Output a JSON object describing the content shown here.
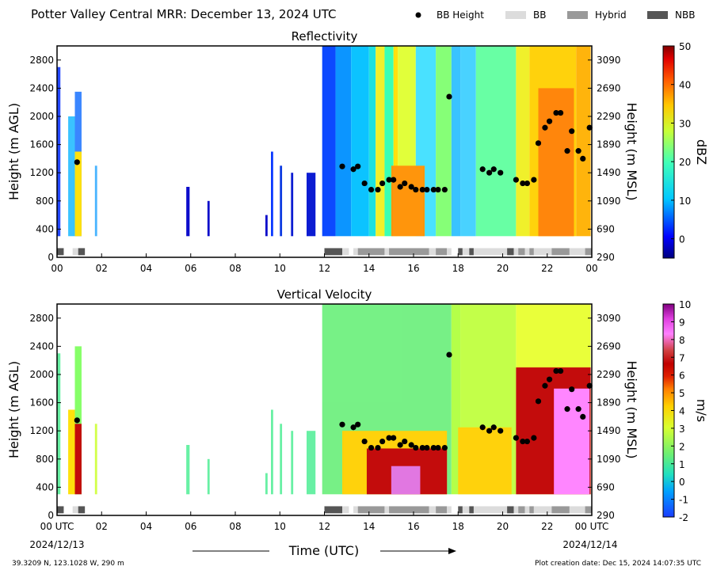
{
  "header": {
    "title": "Potter Valley Central MRR:  December 13, 2024 UTC"
  },
  "legend": [
    {
      "label": "BB Height",
      "kind": "dot",
      "color": "#000000"
    },
    {
      "label": "BB",
      "kind": "swatch",
      "color": "#dcdcdc"
    },
    {
      "label": "Hybrid",
      "kind": "swatch",
      "color": "#999999"
    },
    {
      "label": "NBB",
      "kind": "swatch",
      "color": "#555555"
    }
  ],
  "footer": {
    "location": "39.3209 N, 123.1028 W, 290 m",
    "created": "Plot creation date: Dec 15, 2024 14:07:35 UTC",
    "time_label": "Time (UTC)",
    "start_date": "2024/12/13",
    "end_date": "2024/12/14"
  },
  "chart_data": [
    {
      "type": "heatmap",
      "title": "Reflectivity",
      "ylabel": "Height (m AGL)",
      "ylabel_right": "Height (m MSL)",
      "ylim": [
        0,
        3000
      ],
      "yticks": [
        0,
        400,
        800,
        1200,
        1600,
        2000,
        2400,
        2800
      ],
      "yticks_right": [
        290,
        690,
        1090,
        1490,
        1890,
        2290,
        2690,
        3090
      ],
      "xlim": [
        0,
        24
      ],
      "xticks": [
        "00",
        "02",
        "04",
        "06",
        "08",
        "10",
        "12",
        "14",
        "16",
        "18",
        "20",
        "22",
        "00"
      ],
      "colorbar": {
        "label": "dBZ",
        "min": -5,
        "max": 50,
        "ticks": [
          0,
          10,
          20,
          30,
          40,
          50
        ]
      },
      "bb_height_points": [
        [
          0.9,
          1350
        ],
        [
          12.8,
          1290
        ],
        [
          13.3,
          1250
        ],
        [
          13.5,
          1290
        ],
        [
          13.8,
          1050
        ],
        [
          14.1,
          960
        ],
        [
          14.4,
          960
        ],
        [
          14.6,
          1050
        ],
        [
          14.9,
          1100
        ],
        [
          15.1,
          1100
        ],
        [
          15.4,
          1000
        ],
        [
          15.6,
          1050
        ],
        [
          15.9,
          1000
        ],
        [
          16.1,
          960
        ],
        [
          16.4,
          960
        ],
        [
          16.6,
          960
        ],
        [
          16.9,
          960
        ],
        [
          17.1,
          960
        ],
        [
          17.4,
          960
        ],
        [
          17.6,
          2280
        ],
        [
          19.1,
          1250
        ],
        [
          19.4,
          1200
        ],
        [
          19.6,
          1250
        ],
        [
          19.9,
          1200
        ],
        [
          20.6,
          1100
        ],
        [
          20.9,
          1050
        ],
        [
          21.1,
          1050
        ],
        [
          21.4,
          1100
        ],
        [
          21.6,
          1620
        ],
        [
          21.9,
          1840
        ],
        [
          22.1,
          1930
        ],
        [
          22.4,
          2050
        ],
        [
          22.6,
          2050
        ],
        [
          22.9,
          1510
        ],
        [
          23.1,
          1790
        ],
        [
          23.4,
          1510
        ],
        [
          23.6,
          1400
        ],
        [
          23.9,
          1840
        ]
      ],
      "classification": [
        {
          "start": 0.0,
          "end": 0.3,
          "class": "NBB"
        },
        {
          "start": 0.7,
          "end": 0.95,
          "class": "BB"
        },
        {
          "start": 0.95,
          "end": 1.25,
          "class": "NBB"
        },
        {
          "start": 12.0,
          "end": 12.8,
          "class": "NBB"
        },
        {
          "start": 12.8,
          "end": 13.1,
          "class": "BB"
        },
        {
          "start": 13.3,
          "end": 13.5,
          "class": "BB"
        },
        {
          "start": 13.5,
          "end": 14.7,
          "class": "Hybrid"
        },
        {
          "start": 14.7,
          "end": 14.9,
          "class": "BB"
        },
        {
          "start": 14.9,
          "end": 16.7,
          "class": "Hybrid"
        },
        {
          "start": 16.7,
          "end": 17.0,
          "class": "BB"
        },
        {
          "start": 17.0,
          "end": 17.5,
          "class": "Hybrid"
        },
        {
          "start": 17.5,
          "end": 17.7,
          "class": "BB"
        },
        {
          "start": 18.0,
          "end": 18.2,
          "class": "NBB"
        },
        {
          "start": 18.2,
          "end": 18.5,
          "class": "BB"
        },
        {
          "start": 18.5,
          "end": 18.7,
          "class": "NBB"
        },
        {
          "start": 18.7,
          "end": 20.2,
          "class": "BB"
        },
        {
          "start": 20.2,
          "end": 20.5,
          "class": "NBB"
        },
        {
          "start": 20.5,
          "end": 20.7,
          "class": "BB"
        },
        {
          "start": 20.7,
          "end": 21.0,
          "class": "Hybrid"
        },
        {
          "start": 21.0,
          "end": 21.2,
          "class": "BB"
        },
        {
          "start": 21.2,
          "end": 21.4,
          "class": "Hybrid"
        },
        {
          "start": 21.4,
          "end": 22.2,
          "class": "BB"
        },
        {
          "start": 22.2,
          "end": 23.0,
          "class": "Hybrid"
        },
        {
          "start": 23.0,
          "end": 23.7,
          "class": "BB"
        },
        {
          "start": 23.7,
          "end": 24.0,
          "class": "Hybrid"
        }
      ]
    },
    {
      "type": "heatmap",
      "title": "Vertical Velocity",
      "ylabel": "Height (m AGL)",
      "ylabel_right": "Height (m MSL)",
      "ylim": [
        0,
        3000
      ],
      "yticks": [
        0,
        400,
        800,
        1200,
        1600,
        2000,
        2400,
        2800
      ],
      "yticks_right": [
        290,
        690,
        1090,
        1490,
        1890,
        2290,
        2690,
        3090
      ],
      "xlim": [
        0,
        24
      ],
      "xticks": [
        "00 UTC",
        "02",
        "04",
        "06",
        "08",
        "10",
        "12",
        "14",
        "16",
        "18",
        "20",
        "22",
        "00 UTC"
      ],
      "colorbar": {
        "label": "m/s",
        "min": -2,
        "max": 10,
        "ticks": [
          -2,
          -1,
          0,
          1,
          2,
          3,
          4,
          5,
          6,
          7,
          8,
          9,
          10
        ]
      },
      "bb_height_points": [
        [
          0.9,
          1350
        ],
        [
          12.8,
          1290
        ],
        [
          13.3,
          1250
        ],
        [
          13.5,
          1290
        ],
        [
          13.8,
          1050
        ],
        [
          14.1,
          960
        ],
        [
          14.4,
          960
        ],
        [
          14.6,
          1050
        ],
        [
          14.9,
          1100
        ],
        [
          15.1,
          1100
        ],
        [
          15.4,
          1000
        ],
        [
          15.6,
          1050
        ],
        [
          15.9,
          1000
        ],
        [
          16.1,
          960
        ],
        [
          16.4,
          960
        ],
        [
          16.6,
          960
        ],
        [
          16.9,
          960
        ],
        [
          17.1,
          960
        ],
        [
          17.4,
          960
        ],
        [
          17.6,
          2280
        ],
        [
          19.1,
          1250
        ],
        [
          19.4,
          1200
        ],
        [
          19.6,
          1250
        ],
        [
          19.9,
          1200
        ],
        [
          20.6,
          1100
        ],
        [
          20.9,
          1050
        ],
        [
          21.1,
          1050
        ],
        [
          21.4,
          1100
        ],
        [
          21.6,
          1620
        ],
        [
          21.9,
          1840
        ],
        [
          22.1,
          1930
        ],
        [
          22.4,
          2050
        ],
        [
          22.6,
          2050
        ],
        [
          22.9,
          1510
        ],
        [
          23.1,
          1790
        ],
        [
          23.4,
          1510
        ],
        [
          23.6,
          1400
        ],
        [
          23.9,
          1840
        ]
      ],
      "classification": [
        {
          "start": 0.0,
          "end": 0.3,
          "class": "NBB"
        },
        {
          "start": 0.7,
          "end": 0.95,
          "class": "BB"
        },
        {
          "start": 0.95,
          "end": 1.25,
          "class": "NBB"
        },
        {
          "start": 12.0,
          "end": 12.8,
          "class": "NBB"
        },
        {
          "start": 12.8,
          "end": 13.1,
          "class": "BB"
        },
        {
          "start": 13.3,
          "end": 13.5,
          "class": "BB"
        },
        {
          "start": 13.5,
          "end": 14.7,
          "class": "Hybrid"
        },
        {
          "start": 14.7,
          "end": 14.9,
          "class": "BB"
        },
        {
          "start": 14.9,
          "end": 16.7,
          "class": "Hybrid"
        },
        {
          "start": 16.7,
          "end": 17.0,
          "class": "BB"
        },
        {
          "start": 17.0,
          "end": 17.5,
          "class": "Hybrid"
        },
        {
          "start": 17.5,
          "end": 17.7,
          "class": "BB"
        },
        {
          "start": 18.0,
          "end": 18.2,
          "class": "NBB"
        },
        {
          "start": 18.2,
          "end": 18.5,
          "class": "BB"
        },
        {
          "start": 18.5,
          "end": 18.7,
          "class": "NBB"
        },
        {
          "start": 18.7,
          "end": 20.2,
          "class": "BB"
        },
        {
          "start": 20.2,
          "end": 20.5,
          "class": "NBB"
        },
        {
          "start": 20.5,
          "end": 20.7,
          "class": "BB"
        },
        {
          "start": 20.7,
          "end": 21.0,
          "class": "Hybrid"
        },
        {
          "start": 21.0,
          "end": 21.2,
          "class": "BB"
        },
        {
          "start": 21.2,
          "end": 21.4,
          "class": "Hybrid"
        },
        {
          "start": 21.4,
          "end": 22.2,
          "class": "BB"
        },
        {
          "start": 22.2,
          "end": 23.0,
          "class": "Hybrid"
        },
        {
          "start": 23.0,
          "end": 23.7,
          "class": "BB"
        },
        {
          "start": 23.7,
          "end": 24.0,
          "class": "Hybrid"
        }
      ]
    }
  ]
}
